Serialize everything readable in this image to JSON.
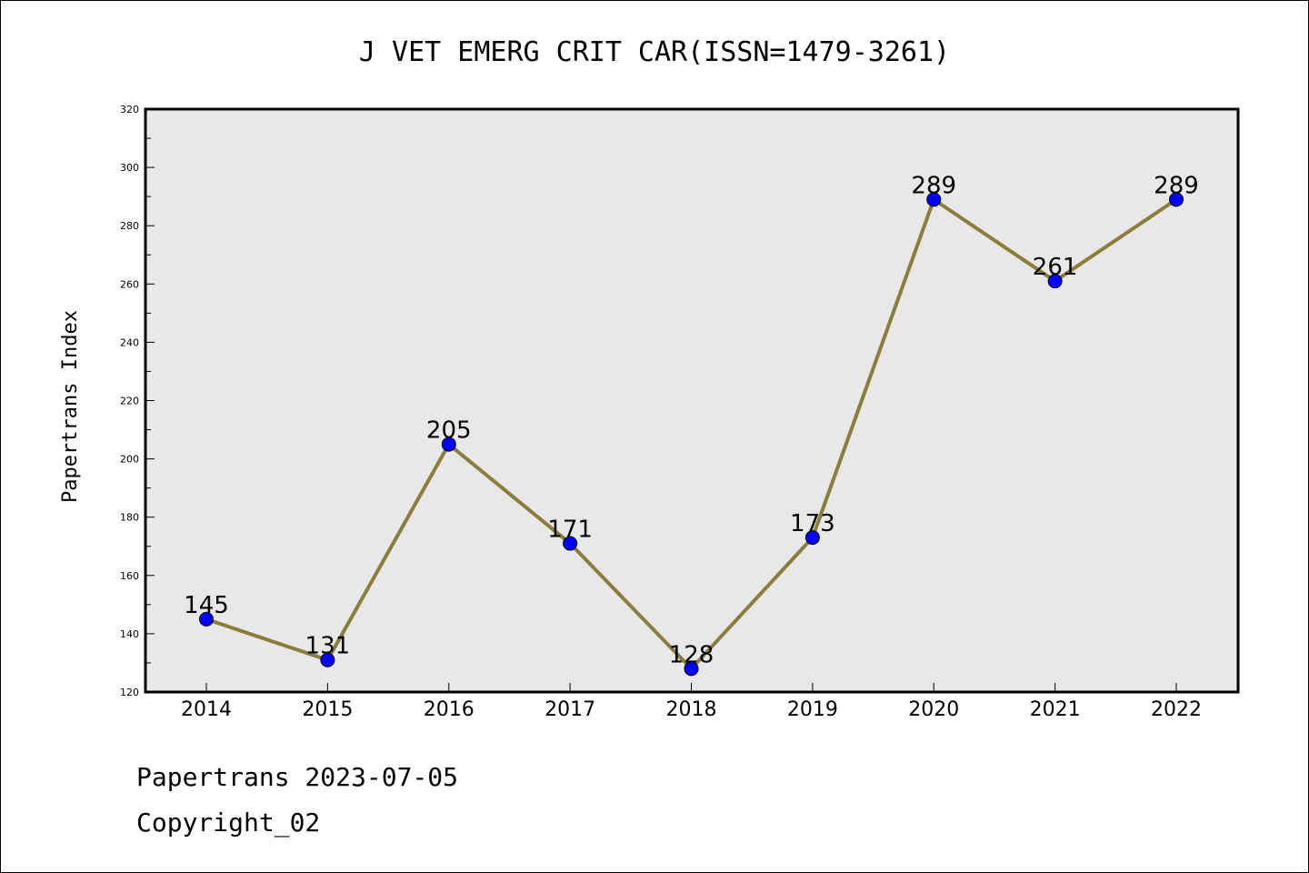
{
  "chart_data": {
    "type": "line",
    "title": "J VET EMERG CRIT CAR(ISSN=1479-3261)",
    "ylabel": "Papertrans Index",
    "xlabel": "",
    "categories": [
      "2014",
      "2015",
      "2016",
      "2017",
      "2018",
      "2019",
      "2020",
      "2021",
      "2022"
    ],
    "values": [
      145,
      131,
      205,
      171,
      128,
      173,
      289,
      261,
      289
    ],
    "ylim": [
      120,
      320
    ],
    "yticks": [
      120,
      140,
      160,
      180,
      200,
      220,
      240,
      260,
      280,
      300,
      320
    ],
    "grid": false,
    "line_color": "#8b7d3a",
    "marker_color": "#0000ff",
    "plot_background": "#e8e8e8"
  },
  "footer": {
    "line1": "Papertrans 2023-07-05",
    "line2": "Copyright_02"
  }
}
